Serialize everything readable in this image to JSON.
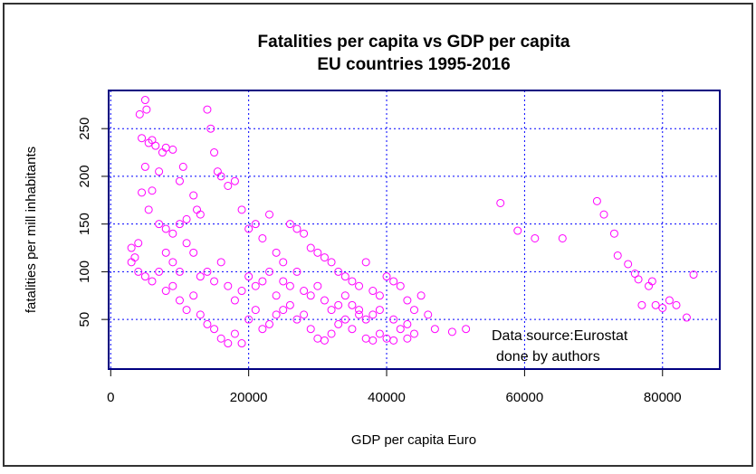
{
  "chart_data": {
    "type": "scatter",
    "title": "Fatalities per capita vs GDP per capita",
    "subtitle": "EU countries 1995-2016",
    "x_label": "GDP per capita Euro",
    "y_label": "fatalities per mill inhabitants",
    "annotations": [
      "Data source:Eurostat",
      "done by authors"
    ],
    "color": "#ff00ff",
    "grid": true,
    "xlim": [
      -300,
      88300
    ],
    "ylim": [
      -2,
      290
    ],
    "xticks": [
      0,
      20000,
      40000,
      60000,
      80000
    ],
    "yticks": [
      50,
      100,
      150,
      200,
      250
    ],
    "x": [
      3000,
      3500,
      4000,
      4200,
      4500,
      5000,
      5200,
      5500,
      5000,
      6000,
      6500,
      7000,
      7500,
      8000,
      9000,
      10000,
      10500,
      6000,
      4500,
      5500,
      7000,
      8000,
      9000,
      10000,
      11000,
      12000,
      12500,
      13000,
      14000,
      14500,
      15000,
      15500,
      16000,
      17000,
      18000,
      19000,
      20000,
      21000,
      22000,
      23000,
      24000,
      25000,
      26000,
      27000,
      28000,
      29000,
      30000,
      31000,
      32000,
      33000,
      34000,
      35000,
      36000,
      37000,
      38000,
      39000,
      40000,
      41000,
      42000,
      43000,
      44000,
      45000,
      46000,
      47000,
      49500,
      51500,
      56500,
      59000,
      61500,
      65500,
      70500,
      71500,
      73000,
      73500,
      75000,
      76000,
      76500,
      77000,
      78000,
      78500,
      79000,
      80000,
      81000,
      82000,
      83500,
      84500,
      3000,
      4000,
      5000,
      6000,
      7000,
      8000,
      9000,
      10000,
      11000,
      12000,
      13000,
      14000,
      15000,
      16000,
      17000,
      18000,
      19000,
      20000,
      21000,
      22000,
      23000,
      24000,
      25000,
      26000,
      27000,
      28000,
      29000,
      30000,
      31000,
      32000,
      33000,
      34000,
      35000,
      36000,
      37000,
      38000,
      39000,
      40000,
      41000,
      42000,
      43000,
      44000,
      8000,
      9000,
      10000,
      11000,
      12000,
      13000,
      14000,
      15000,
      16000,
      17000,
      18000,
      19000,
      20000,
      21000,
      22000,
      23000,
      24000,
      25000,
      26000,
      27000,
      28000,
      29000,
      30000,
      31000,
      32000,
      33000,
      34000,
      35000,
      36000,
      37000,
      38000,
      39000,
      41000,
      43000
    ],
    "values": [
      125,
      115,
      130,
      265,
      240,
      280,
      270,
      235,
      210,
      238,
      232,
      205,
      225,
      230,
      228,
      195,
      210,
      185,
      183,
      165,
      150,
      145,
      140,
      150,
      155,
      180,
      165,
      160,
      270,
      250,
      225,
      205,
      200,
      190,
      195,
      165,
      145,
      150,
      135,
      160,
      120,
      110,
      150,
      145,
      140,
      125,
      120,
      115,
      110,
      100,
      95,
      90,
      85,
      110,
      80,
      75,
      95,
      90,
      85,
      70,
      60,
      75,
      55,
      40,
      37,
      40,
      172,
      143,
      135,
      135,
      174,
      160,
      140,
      117,
      108,
      98,
      92,
      65,
      85,
      90,
      65,
      62,
      70,
      65,
      52,
      97,
      110,
      100,
      95,
      90,
      100,
      80,
      85,
      70,
      60,
      75,
      55,
      45,
      40,
      30,
      25,
      35,
      25,
      50,
      60,
      40,
      45,
      55,
      60,
      65,
      50,
      55,
      40,
      30,
      28,
      35,
      45,
      50,
      40,
      55,
      30,
      28,
      35,
      30,
      28,
      40,
      30,
      35,
      120,
      110,
      100,
      130,
      120,
      95,
      100,
      90,
      110,
      85,
      70,
      80,
      95,
      85,
      90,
      100,
      75,
      90,
      85,
      100,
      80,
      75,
      85,
      70,
      60,
      65,
      75,
      65,
      60,
      50,
      55,
      60,
      50,
      45
    ]
  }
}
